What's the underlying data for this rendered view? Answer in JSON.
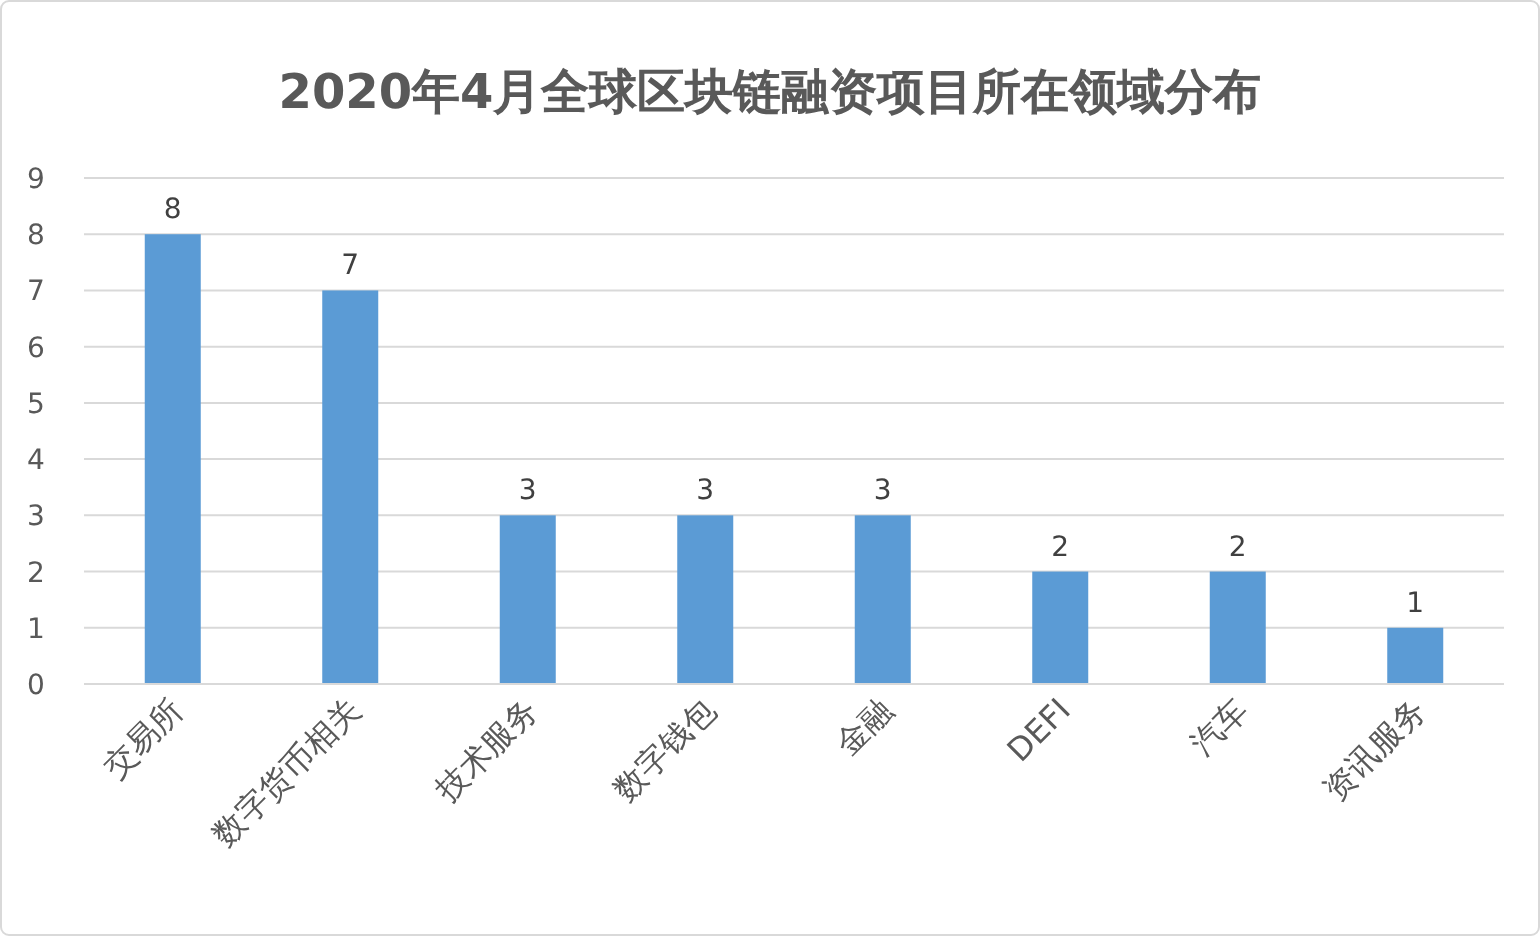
{
  "chart_data": {
    "type": "bar",
    "title": "2020年4月全球区块链融资项目所在领域分布",
    "categories": [
      "交易所",
      "数字货币相关",
      "技术服务",
      "数字钱包",
      "金融",
      "DEFI",
      "汽车",
      "资讯服务"
    ],
    "values": [
      8,
      7,
      3,
      3,
      3,
      2,
      2,
      1
    ],
    "color": "#5b9bd5",
    "ylim": [
      0,
      9
    ],
    "yticks": [
      0,
      1,
      2,
      3,
      4,
      5,
      6,
      7,
      8,
      9
    ],
    "grid": "y",
    "data_labels": true
  }
}
